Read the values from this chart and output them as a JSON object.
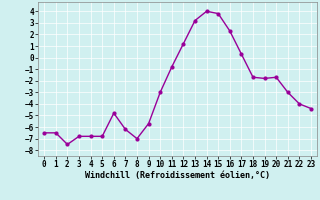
{
  "x": [
    0,
    1,
    2,
    3,
    4,
    5,
    6,
    7,
    8,
    9,
    10,
    11,
    12,
    13,
    14,
    15,
    16,
    17,
    18,
    19,
    20,
    21,
    22,
    23
  ],
  "y": [
    -6.5,
    -6.5,
    -7.5,
    -6.8,
    -6.8,
    -6.8,
    -4.8,
    -6.2,
    -7.0,
    -5.7,
    -3.0,
    -0.8,
    1.2,
    3.2,
    4.0,
    3.8,
    2.3,
    0.3,
    -1.7,
    -1.8,
    -1.7,
    -3.0,
    -4.0,
    -4.4
  ],
  "line_color": "#990099",
  "marker": "o",
  "markersize": 2.0,
  "linewidth": 1.0,
  "bg_color": "#d0f0f0",
  "grid_color": "#ffffff",
  "xlabel": "Windchill (Refroidissement éolien,°C)",
  "xlabel_fontsize": 6.0,
  "xlim": [
    -0.5,
    23.5
  ],
  "ylim": [
    -8.5,
    4.8
  ],
  "yticks": [
    -8,
    -7,
    -6,
    -5,
    -4,
    -3,
    -2,
    -1,
    0,
    1,
    2,
    3,
    4
  ],
  "xticks": [
    0,
    1,
    2,
    3,
    4,
    5,
    6,
    7,
    8,
    9,
    10,
    11,
    12,
    13,
    14,
    15,
    16,
    17,
    18,
    19,
    20,
    21,
    22,
    23
  ],
  "tick_fontsize": 5.5,
  "grid_linewidth": 0.5
}
